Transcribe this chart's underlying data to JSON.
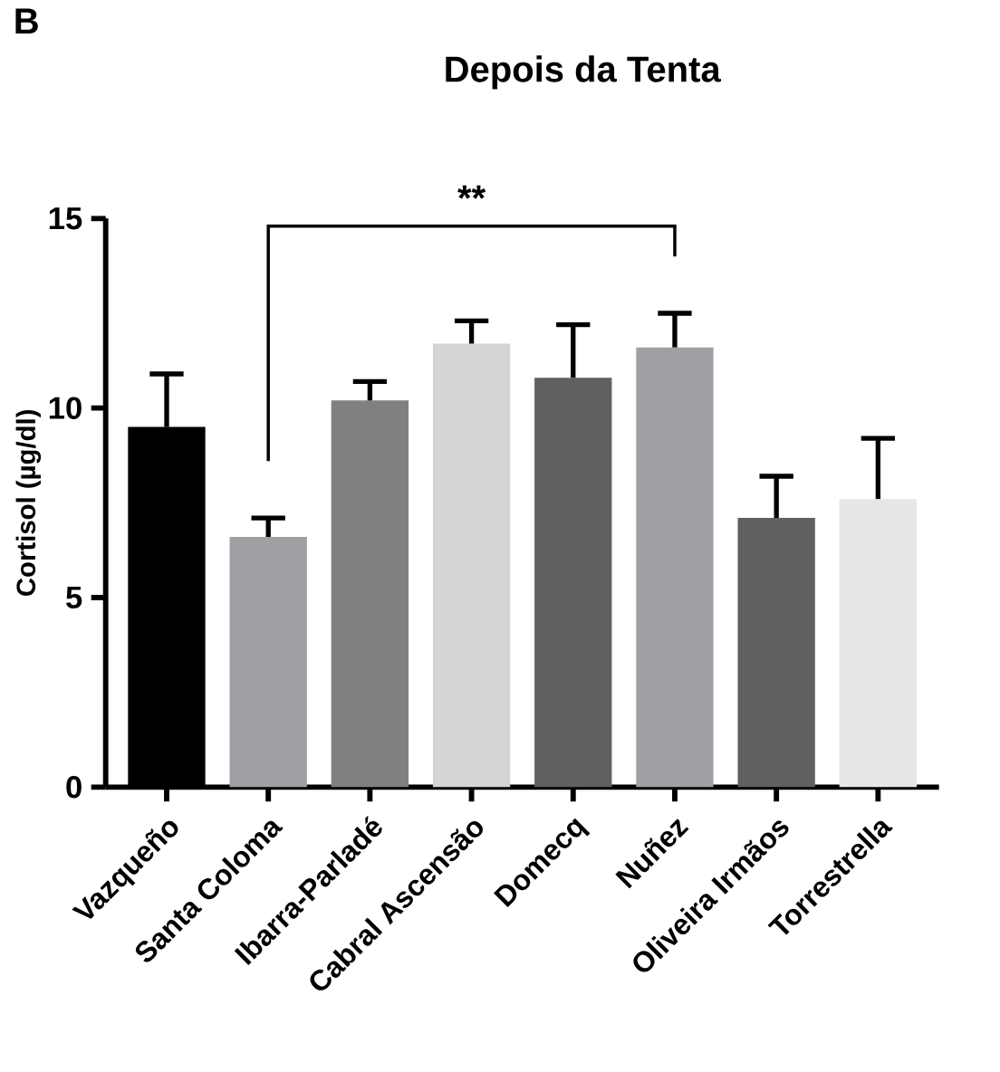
{
  "chart_data": {
    "type": "bar",
    "title": "Depois da Tenta",
    "ylabel": "Cortisol (µg/dl)",
    "categories": [
      "Vazqueño",
      "Santa Coloma",
      "Ibarra-Parladé",
      "Cabral Ascensão",
      "Domecq",
      "Nuñez",
      "Oliveira Irmãos",
      "Torrestrella"
    ],
    "values": [
      9.5,
      6.6,
      10.2,
      11.7,
      10.8,
      11.6,
      7.1,
      7.6
    ],
    "colors": [
      "#000000",
      "#a0a0a4",
      "#808080",
      "#d4d4d4",
      "#606060",
      "#a0a0a4",
      "#606060",
      "#e6e6e6"
    ],
    "errors": [
      [
        9.5,
        10.9
      ],
      [
        6.6,
        7.1
      ],
      [
        10.2,
        10.7
      ],
      [
        11.7,
        12.3
      ],
      [
        10.8,
        12.2
      ],
      [
        11.6,
        12.5
      ],
      [
        7.1,
        8.2
      ],
      [
        7.6,
        9.2
      ]
    ],
    "ylim": [
      0,
      15
    ],
    "yticks": [
      0,
      5,
      10,
      15
    ],
    "grid": false,
    "annotations": [
      "B",
      "**"
    ]
  }
}
